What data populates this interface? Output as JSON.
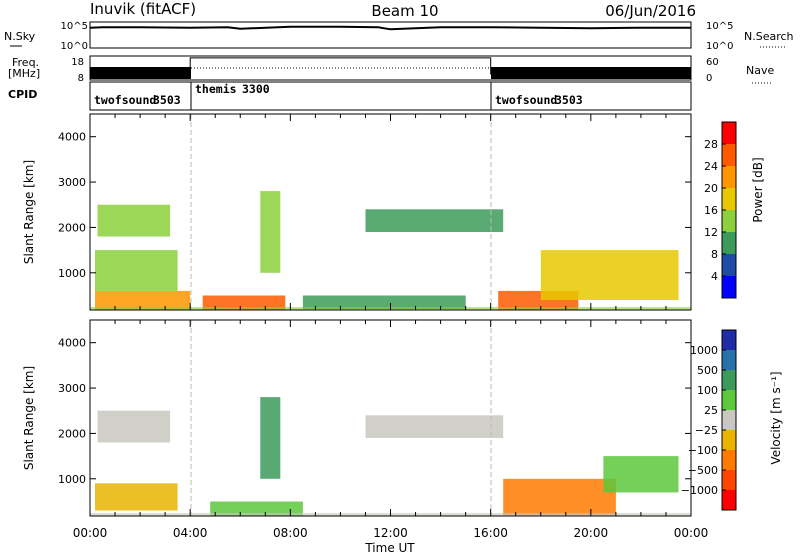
{
  "header": {
    "station": "Inuvik (fitACF)",
    "beam": "Beam 10",
    "date": "06/Jun/2016"
  },
  "noise_panel": {
    "left_label": "N.Sky",
    "right_label": "N.Search",
    "left_ticks": [
      "10^5",
      "10^0"
    ],
    "right_ticks": [
      "10^5",
      "10^0"
    ]
  },
  "freq_panel": {
    "left_label_1": "Freq.",
    "left_label_2": "[MHz]",
    "left_ticks": [
      "18",
      "8"
    ],
    "right_label": "Nave",
    "right_ticks": [
      "60",
      "0"
    ]
  },
  "cpid_panel": {
    "label": "CPID",
    "segments": [
      {
        "name": "twofsound",
        "id": "3503",
        "start_hour": 0,
        "end_hour": 4
      },
      {
        "name": "themis",
        "id": "3300",
        "start_hour": 4,
        "end_hour": 16
      },
      {
        "name": "twofsound",
        "id": "3503",
        "start_hour": 16,
        "end_hour": 24
      }
    ]
  },
  "power_panel": {
    "ylabel": "Slant Range [km]",
    "yticks": [
      "1000",
      "2000",
      "3000",
      "4000"
    ],
    "colorbar_label": "Power [dB]",
    "colorbar_ticks": [
      "28",
      "24",
      "20",
      "16",
      "12",
      "8",
      "4"
    ],
    "colors": [
      "#ff0000",
      "#ff5a00",
      "#ff9600",
      "#e8c800",
      "#8cd03c",
      "#3c9b5a",
      "#1e4ba5",
      "#0000ff"
    ]
  },
  "velocity_panel": {
    "ylabel": "Slant Range [km]",
    "yticks": [
      "1000",
      "2000",
      "3000",
      "4000"
    ],
    "colorbar_label": "Velocity [m s⁻¹]",
    "colorbar_ticks": [
      "1000",
      "500",
      "100",
      "25",
      "−25",
      "−100",
      "−500",
      "−1000"
    ],
    "colors": [
      "#1e2ca5",
      "#2673a8",
      "#3c9a5a",
      "#5cc83c",
      "#c8c8c0",
      "#e8b400",
      "#ff7a00",
      "#ff4600",
      "#ff0000"
    ]
  },
  "x_axis": {
    "ticks": [
      "00:00",
      "04:00",
      "08:00",
      "12:00",
      "16:00",
      "20:00",
      "00:00"
    ],
    "label": "Time UT"
  },
  "chart_data": [
    {
      "type": "line",
      "title": "Noise (N.Sky / N.Search)",
      "x_range": [
        0,
        24
      ],
      "x_unit": "hours UT",
      "ylim_log10": [
        0,
        5
      ],
      "series": [
        {
          "name": "N.Sky",
          "x": [
            0,
            0.5,
            2,
            4,
            5.5,
            6,
            8,
            10,
            11.5,
            12,
            14,
            16,
            18,
            20,
            22,
            24
          ],
          "log10_values": [
            3.9,
            4.0,
            4.0,
            3.9,
            4.0,
            3.7,
            4.1,
            4.1,
            4.0,
            3.6,
            4.0,
            4.0,
            3.9,
            3.8,
            3.9,
            3.9
          ]
        }
      ]
    },
    {
      "type": "line",
      "title": "Freq. / Nave",
      "x_range": [
        0,
        24
      ],
      "x_unit": "hours UT",
      "ylim": [
        8,
        18
      ],
      "series": [
        {
          "name": "Freq.",
          "x": [
            0,
            4,
            4,
            16,
            16,
            24
          ],
          "values": [
            10.5,
            10.5,
            17.2,
            17.2,
            10.5,
            10.5
          ]
        }
      ]
    },
    {
      "type": "heatmap",
      "title": "Power [dB]",
      "x_range": [
        0,
        24
      ],
      "ylim": [
        180,
        4500
      ],
      "colorbar_range": [
        0,
        30
      ],
      "regions": [
        {
          "x": [
            0.2,
            4.0
          ],
          "y": [
            180,
            600
          ],
          "value": 22
        },
        {
          "x": [
            0.2,
            3.5
          ],
          "y": [
            600,
            1500
          ],
          "value": 12
        },
        {
          "x": [
            0.3,
            3.2
          ],
          "y": [
            1800,
            2500
          ],
          "value": 12
        },
        {
          "x": [
            4.5,
            7.8
          ],
          "y": [
            180,
            500
          ],
          "value": 26
        },
        {
          "x": [
            6.8,
            7.6
          ],
          "y": [
            1000,
            2800
          ],
          "value": 14
        },
        {
          "x": [
            8.5,
            15.0
          ],
          "y": [
            200,
            500
          ],
          "value": 10
        },
        {
          "x": [
            11.0,
            16.5
          ],
          "y": [
            1900,
            2400
          ],
          "value": 8
        },
        {
          "x": [
            16.3,
            19.5
          ],
          "y": [
            180,
            600
          ],
          "value": 24
        },
        {
          "x": [
            18.0,
            23.5
          ],
          "y": [
            400,
            1500
          ],
          "value": 16
        }
      ]
    },
    {
      "type": "heatmap",
      "title": "Velocity [m s-1]",
      "x_range": [
        0,
        24
      ],
      "ylim": [
        180,
        4500
      ],
      "colorbar_range": [
        -1000,
        1000
      ],
      "regions": [
        {
          "x": [
            0.2,
            3.5
          ],
          "y": [
            300,
            900
          ],
          "value": -300
        },
        {
          "x": [
            0.3,
            3.2
          ],
          "y": [
            1800,
            2500
          ],
          "value": 0
        },
        {
          "x": [
            4.8,
            8.5
          ],
          "y": [
            180,
            500
          ],
          "value": 150
        },
        {
          "x": [
            6.8,
            7.6
          ],
          "y": [
            1000,
            2800
          ],
          "value": 400
        },
        {
          "x": [
            11.0,
            16.5
          ],
          "y": [
            1900,
            2400
          ],
          "value": 0
        },
        {
          "x": [
            16.5,
            21.0
          ],
          "y": [
            200,
            1000
          ],
          "value": -400
        },
        {
          "x": [
            20.5,
            23.5
          ],
          "y": [
            700,
            1500
          ],
          "value": 300
        }
      ]
    }
  ]
}
